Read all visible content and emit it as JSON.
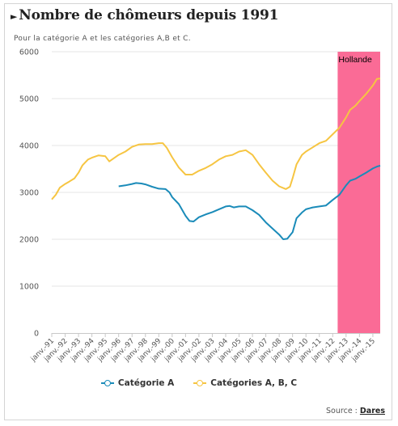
{
  "header": {
    "marker": "►",
    "title": "Nombre de chômeurs depuis 1991",
    "subtitle": "Pour la catégorie A et les catégories A,B et C."
  },
  "legend": [
    {
      "label": "Catégorie A",
      "color": "#1a8bb9"
    },
    {
      "label": "Catégories A, B, C",
      "color": "#f6c542"
    }
  ],
  "source": {
    "prefix": "Source : ",
    "link": "Dares"
  },
  "chart_data": {
    "type": "line",
    "title": "Nombre de chômeurs depuis 1991",
    "subtitle": "Pour la catégorie A et les catégories A,B et C.",
    "ylim": [
      0,
      6000
    ],
    "y_ticks": [
      0,
      1000,
      2000,
      3000,
      4000,
      5000,
      6000
    ],
    "xlim": [
      1991.0,
      2015.55
    ],
    "x_tick_labels": [
      "janv.-91",
      "janv.-92",
      "janv.-93",
      "janv.-94",
      "janv.-95",
      "janv.-96",
      "janv.-97",
      "janv.-98",
      "janv.-99",
      "janv.-00",
      "janv.-01",
      "janv.-02",
      "janv.-03",
      "janv.-04",
      "janv.-05",
      "janv.-06",
      "janv.-07",
      "janv.-08",
      "janv.-09",
      "janv.-10",
      "janv.-11",
      "janv.-12",
      "janv.-13",
      "janv.-14",
      "janv.-15"
    ],
    "grid": "horizontal",
    "legend_position": "bottom",
    "band": {
      "label": "Hollande",
      "from": 2012.37,
      "to": 2015.55,
      "color": "#fa6b96"
    },
    "series": [
      {
        "name": "Catégorie A",
        "color": "#1a8bb9",
        "points": [
          [
            1996.0,
            3130
          ],
          [
            1996.5,
            3150
          ],
          [
            1997.0,
            3180
          ],
          [
            1997.3,
            3200
          ],
          [
            1997.7,
            3190
          ],
          [
            1998.0,
            3170
          ],
          [
            1998.5,
            3120
          ],
          [
            1999.0,
            3080
          ],
          [
            1999.5,
            3070
          ],
          [
            1999.8,
            3000
          ],
          [
            2000.0,
            2900
          ],
          [
            2000.5,
            2750
          ],
          [
            2001.0,
            2500
          ],
          [
            2001.3,
            2390
          ],
          [
            2001.6,
            2380
          ],
          [
            2002.0,
            2470
          ],
          [
            2002.5,
            2530
          ],
          [
            2003.0,
            2580
          ],
          [
            2003.5,
            2640
          ],
          [
            2004.0,
            2700
          ],
          [
            2004.3,
            2710
          ],
          [
            2004.6,
            2680
          ],
          [
            2005.0,
            2700
          ],
          [
            2005.5,
            2700
          ],
          [
            2006.0,
            2620
          ],
          [
            2006.5,
            2520
          ],
          [
            2007.0,
            2360
          ],
          [
            2007.5,
            2230
          ],
          [
            2008.0,
            2100
          ],
          [
            2008.3,
            2000
          ],
          [
            2008.6,
            2010
          ],
          [
            2009.0,
            2150
          ],
          [
            2009.3,
            2450
          ],
          [
            2009.7,
            2570
          ],
          [
            2010.0,
            2640
          ],
          [
            2010.5,
            2680
          ],
          [
            2011.0,
            2700
          ],
          [
            2011.5,
            2720
          ],
          [
            2012.0,
            2840
          ],
          [
            2012.5,
            2950
          ],
          [
            2013.0,
            3150
          ],
          [
            2013.3,
            3250
          ],
          [
            2013.7,
            3290
          ],
          [
            2014.0,
            3340
          ],
          [
            2014.5,
            3420
          ],
          [
            2015.0,
            3510
          ],
          [
            2015.3,
            3550
          ],
          [
            2015.55,
            3570
          ]
        ]
      },
      {
        "name": "Catégories A, B, C",
        "color": "#f6c542",
        "points": [
          [
            1991.0,
            2850
          ],
          [
            1991.3,
            2950
          ],
          [
            1991.6,
            3100
          ],
          [
            1992.0,
            3180
          ],
          [
            1992.3,
            3230
          ],
          [
            1992.7,
            3300
          ],
          [
            1993.0,
            3420
          ],
          [
            1993.3,
            3580
          ],
          [
            1993.7,
            3700
          ],
          [
            1994.0,
            3740
          ],
          [
            1994.5,
            3790
          ],
          [
            1995.0,
            3770
          ],
          [
            1995.3,
            3660
          ],
          [
            1995.6,
            3720
          ],
          [
            1996.0,
            3800
          ],
          [
            1996.5,
            3870
          ],
          [
            1997.0,
            3970
          ],
          [
            1997.5,
            4020
          ],
          [
            1998.0,
            4030
          ],
          [
            1998.5,
            4030
          ],
          [
            1999.0,
            4050
          ],
          [
            1999.3,
            4050
          ],
          [
            1999.6,
            3950
          ],
          [
            2000.0,
            3750
          ],
          [
            2000.5,
            3530
          ],
          [
            2001.0,
            3380
          ],
          [
            2001.5,
            3380
          ],
          [
            2002.0,
            3460
          ],
          [
            2002.5,
            3520
          ],
          [
            2003.0,
            3600
          ],
          [
            2003.5,
            3700
          ],
          [
            2004.0,
            3770
          ],
          [
            2004.5,
            3800
          ],
          [
            2005.0,
            3870
          ],
          [
            2005.5,
            3900
          ],
          [
            2006.0,
            3800
          ],
          [
            2006.5,
            3600
          ],
          [
            2007.0,
            3420
          ],
          [
            2007.5,
            3250
          ],
          [
            2008.0,
            3130
          ],
          [
            2008.5,
            3070
          ],
          [
            2008.8,
            3120
          ],
          [
            2009.0,
            3300
          ],
          [
            2009.3,
            3600
          ],
          [
            2009.7,
            3800
          ],
          [
            2010.0,
            3870
          ],
          [
            2010.5,
            3960
          ],
          [
            2011.0,
            4050
          ],
          [
            2011.5,
            4100
          ],
          [
            2012.0,
            4240
          ],
          [
            2012.5,
            4380
          ],
          [
            2013.0,
            4600
          ],
          [
            2013.3,
            4760
          ],
          [
            2013.7,
            4850
          ],
          [
            2014.0,
            4950
          ],
          [
            2014.5,
            5100
          ],
          [
            2015.0,
            5280
          ],
          [
            2015.3,
            5420
          ],
          [
            2015.55,
            5430
          ]
        ]
      }
    ]
  }
}
